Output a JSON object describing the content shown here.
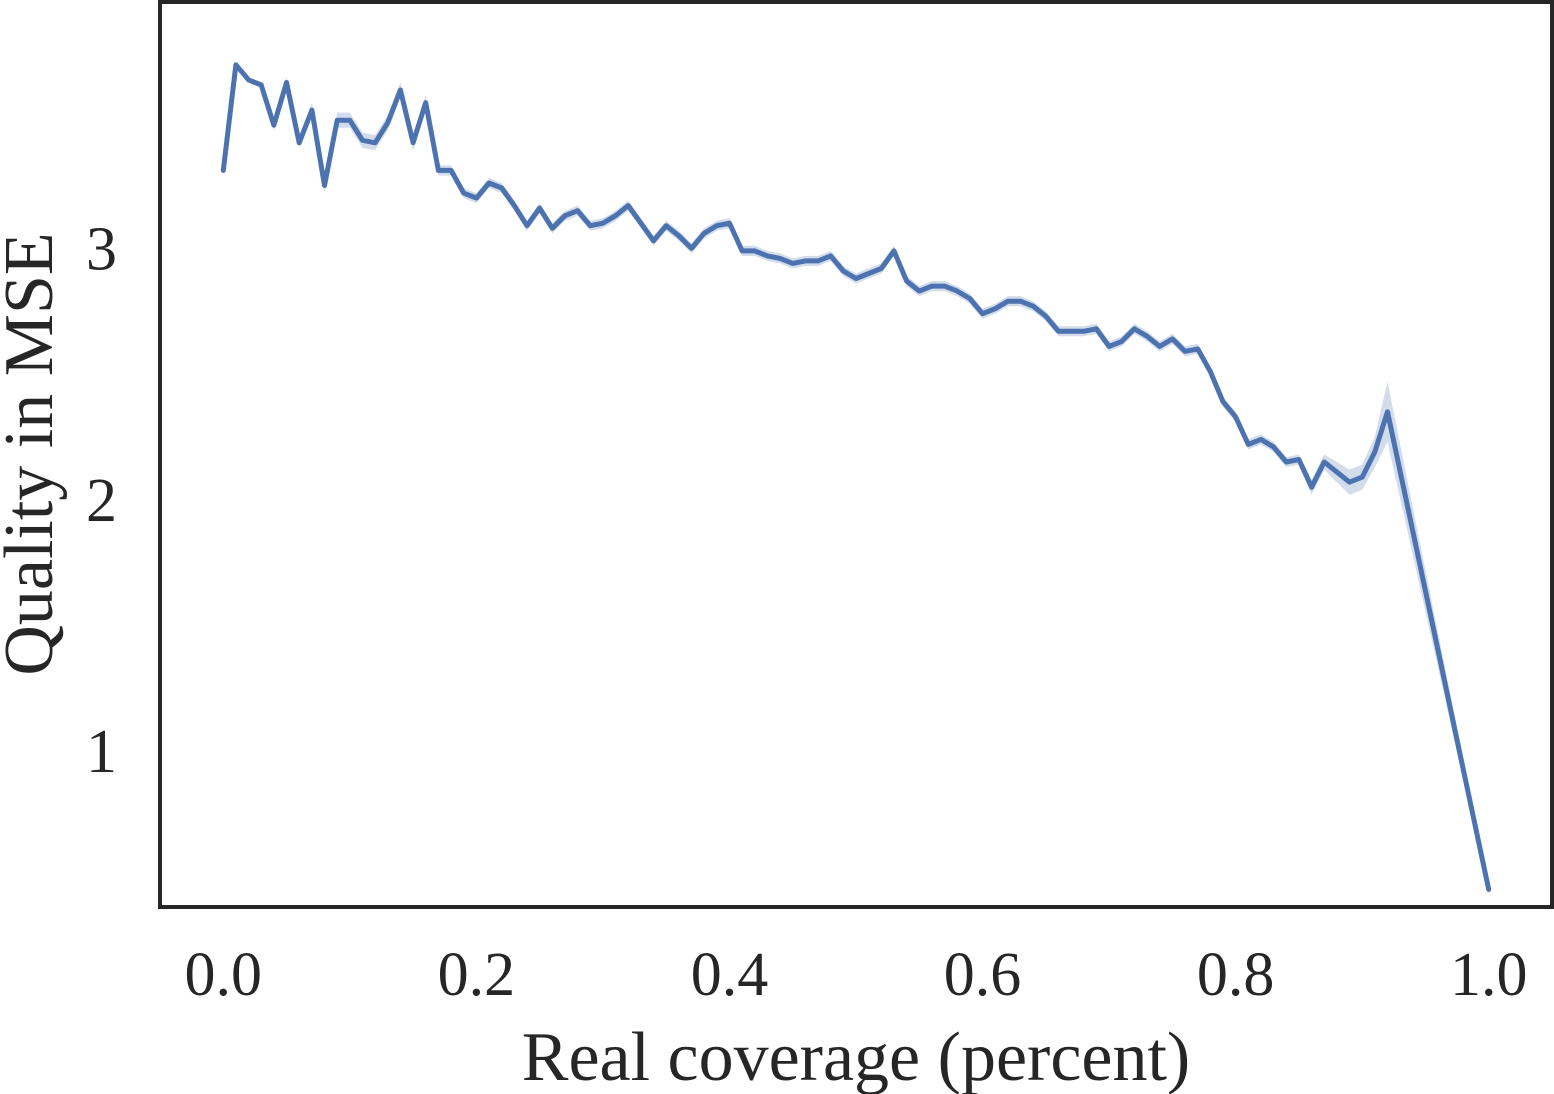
{
  "chart_data": {
    "type": "line",
    "title": "",
    "xlabel": "Real coverage (percent)",
    "ylabel": "Quality in MSE",
    "xlim": [
      -0.05,
      1.05
    ],
    "ylim": [
      0.38,
      3.98
    ],
    "xticks": [
      {
        "value": 0.0,
        "label": "0.0"
      },
      {
        "value": 0.2,
        "label": "0.2"
      },
      {
        "value": 0.4,
        "label": "0.4"
      },
      {
        "value": 0.6,
        "label": "0.6"
      },
      {
        "value": 0.8,
        "label": "0.8"
      },
      {
        "value": 1.0,
        "label": "1.0"
      }
    ],
    "yticks": [
      {
        "value": 1,
        "label": "1"
      },
      {
        "value": 2,
        "label": "2"
      },
      {
        "value": 3,
        "label": "3"
      }
    ],
    "grid": false,
    "legend": "none",
    "colors": {
      "line": "#4c72b0",
      "band": "#4c72b0",
      "axes": "#262626",
      "text": "#262626"
    },
    "series": [
      {
        "x": [
          0.0,
          0.01,
          0.02,
          0.03,
          0.04,
          0.05,
          0.06,
          0.07,
          0.08,
          0.09,
          0.1,
          0.11,
          0.12,
          0.13,
          0.14,
          0.15,
          0.16,
          0.17,
          0.18,
          0.19,
          0.2,
          0.21,
          0.22,
          0.23,
          0.24,
          0.25,
          0.26,
          0.27,
          0.28,
          0.29,
          0.3,
          0.31,
          0.32,
          0.33,
          0.34,
          0.35,
          0.36,
          0.37,
          0.38,
          0.39,
          0.4,
          0.41,
          0.42,
          0.43,
          0.44,
          0.45,
          0.46,
          0.47,
          0.48,
          0.49,
          0.5,
          0.51,
          0.52,
          0.53,
          0.54,
          0.55,
          0.56,
          0.57,
          0.58,
          0.59,
          0.6,
          0.61,
          0.62,
          0.63,
          0.64,
          0.65,
          0.66,
          0.67,
          0.68,
          0.69,
          0.7,
          0.71,
          0.72,
          0.73,
          0.74,
          0.75,
          0.76,
          0.77,
          0.78,
          0.79,
          0.8,
          0.81,
          0.82,
          0.83,
          0.84,
          0.85,
          0.86,
          0.87,
          0.88,
          0.89,
          0.9,
          0.91,
          0.92,
          1.0
        ],
        "y": [
          3.31,
          3.73,
          3.67,
          3.65,
          3.49,
          3.66,
          3.42,
          3.55,
          3.25,
          3.51,
          3.51,
          3.43,
          3.42,
          3.5,
          3.63,
          3.42,
          3.58,
          3.31,
          3.31,
          3.22,
          3.2,
          3.26,
          3.24,
          3.17,
          3.09,
          3.16,
          3.08,
          3.13,
          3.15,
          3.09,
          3.1,
          3.13,
          3.17,
          3.1,
          3.03,
          3.09,
          3.05,
          3.0,
          3.06,
          3.09,
          3.1,
          2.99,
          2.99,
          2.97,
          2.96,
          2.94,
          2.95,
          2.95,
          2.97,
          2.91,
          2.88,
          2.9,
          2.92,
          2.99,
          2.87,
          2.83,
          2.85,
          2.85,
          2.83,
          2.8,
          2.74,
          2.76,
          2.79,
          2.79,
          2.77,
          2.73,
          2.67,
          2.67,
          2.67,
          2.68,
          2.61,
          2.63,
          2.68,
          2.65,
          2.61,
          2.64,
          2.59,
          2.6,
          2.51,
          2.39,
          2.33,
          2.22,
          2.24,
          2.21,
          2.15,
          2.16,
          2.05,
          2.15,
          2.11,
          2.07,
          2.09,
          2.19,
          2.35,
          0.45
        ],
        "ci_halfwidth": [
          0.01,
          0.01,
          0.01,
          0.01,
          0.02,
          0.02,
          0.02,
          0.03,
          0.03,
          0.03,
          0.03,
          0.03,
          0.03,
          0.03,
          0.03,
          0.03,
          0.03,
          0.02,
          0.02,
          0.02,
          0.02,
          0.02,
          0.02,
          0.02,
          0.02,
          0.02,
          0.02,
          0.02,
          0.02,
          0.02,
          0.02,
          0.02,
          0.02,
          0.02,
          0.02,
          0.02,
          0.02,
          0.02,
          0.02,
          0.02,
          0.02,
          0.02,
          0.02,
          0.02,
          0.02,
          0.02,
          0.02,
          0.02,
          0.02,
          0.02,
          0.02,
          0.02,
          0.02,
          0.02,
          0.02,
          0.02,
          0.02,
          0.02,
          0.02,
          0.02,
          0.02,
          0.02,
          0.02,
          0.02,
          0.02,
          0.02,
          0.02,
          0.02,
          0.02,
          0.02,
          0.02,
          0.02,
          0.02,
          0.02,
          0.02,
          0.02,
          0.02,
          0.02,
          0.02,
          0.02,
          0.02,
          0.02,
          0.02,
          0.02,
          0.02,
          0.02,
          0.03,
          0.03,
          0.04,
          0.05,
          0.05,
          0.06,
          0.12,
          0.02
        ]
      }
    ]
  }
}
